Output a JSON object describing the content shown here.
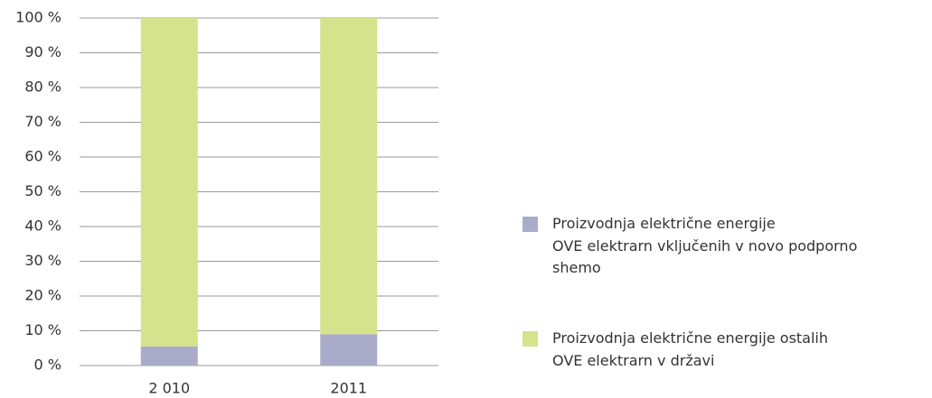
{
  "chart_data": {
    "type": "stacked_bar",
    "categories": [
      "2 010",
      "2011"
    ],
    "series": [
      {
        "name": "Proizvodnja električne energije\nOVE elektrarn vključenih v novo podporno\nshemo",
        "color": "#a9abc9",
        "values": [
          5.5,
          9
        ]
      },
      {
        "name": "Proizvodnja električne energije ostalih\nOVE elektrarn v državi",
        "color": "#d4e38c",
        "values": [
          94.5,
          91
        ]
      }
    ],
    "ylim": [
      0,
      100
    ],
    "yticks": [
      {
        "value": 0,
        "label": "0 %"
      },
      {
        "value": 10,
        "label": "10 %"
      },
      {
        "value": 20,
        "label": "20 %"
      },
      {
        "value": 30,
        "label": "30 %"
      },
      {
        "value": 40,
        "label": "40 %"
      },
      {
        "value": 50,
        "label": "50 %"
      },
      {
        "value": 60,
        "label": "60 %"
      },
      {
        "value": 70,
        "label": "70 %"
      },
      {
        "value": 80,
        "label": "80 %"
      },
      {
        "value": 90,
        "label": "90 %"
      },
      {
        "value": 100,
        "label": "100 %"
      }
    ],
    "grid": true,
    "legend": "right"
  }
}
